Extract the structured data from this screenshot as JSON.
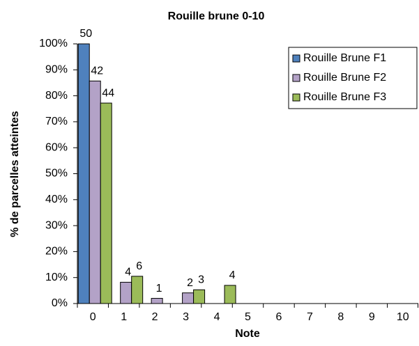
{
  "chart_data": {
    "type": "bar",
    "title": "Rouille brune 0-10",
    "x_label": "Note",
    "y_label": "% de parcelles atteintes",
    "categories": [
      "0",
      "1",
      "2",
      "3",
      "4",
      "5",
      "6",
      "7",
      "8",
      "9",
      "10"
    ],
    "series": [
      {
        "name": "Rouille Brune F1",
        "color": "#4f81bd",
        "values": [
          100,
          0,
          0,
          0,
          0,
          0,
          0,
          0,
          0,
          0,
          0
        ],
        "counts": [
          50,
          null,
          null,
          null,
          null,
          null,
          null,
          null,
          null,
          null,
          null
        ]
      },
      {
        "name": "Rouille Brune F2",
        "color": "#b3a2c7",
        "values": [
          85.7,
          8.2,
          2.0,
          4.1,
          0,
          0,
          0,
          0,
          0,
          0,
          0
        ],
        "counts": [
          42,
          4,
          1,
          2,
          null,
          null,
          null,
          null,
          null,
          null,
          null
        ]
      },
      {
        "name": "Rouille Brune F3",
        "color": "#9bbb59",
        "values": [
          77.2,
          10.5,
          0,
          5.3,
          7.0,
          0,
          0,
          0,
          0,
          0,
          0
        ],
        "counts": [
          44,
          6,
          null,
          3,
          4,
          null,
          null,
          null,
          null,
          null,
          null
        ]
      }
    ],
    "ylim": [
      0,
      100
    ],
    "yticks": [
      {
        "value": 0,
        "label": "0%"
      },
      {
        "value": 10,
        "label": "10%"
      },
      {
        "value": 20,
        "label": "20%"
      },
      {
        "value": 30,
        "label": "30%"
      },
      {
        "value": 40,
        "label": "40%"
      },
      {
        "value": 50,
        "label": "50%"
      },
      {
        "value": 60,
        "label": "60%"
      },
      {
        "value": 70,
        "label": "70%"
      },
      {
        "value": 80,
        "label": "80%"
      },
      {
        "value": 90,
        "label": "90%"
      },
      {
        "value": 100,
        "label": "100%"
      }
    ],
    "grid": false,
    "legend": "upper right"
  }
}
